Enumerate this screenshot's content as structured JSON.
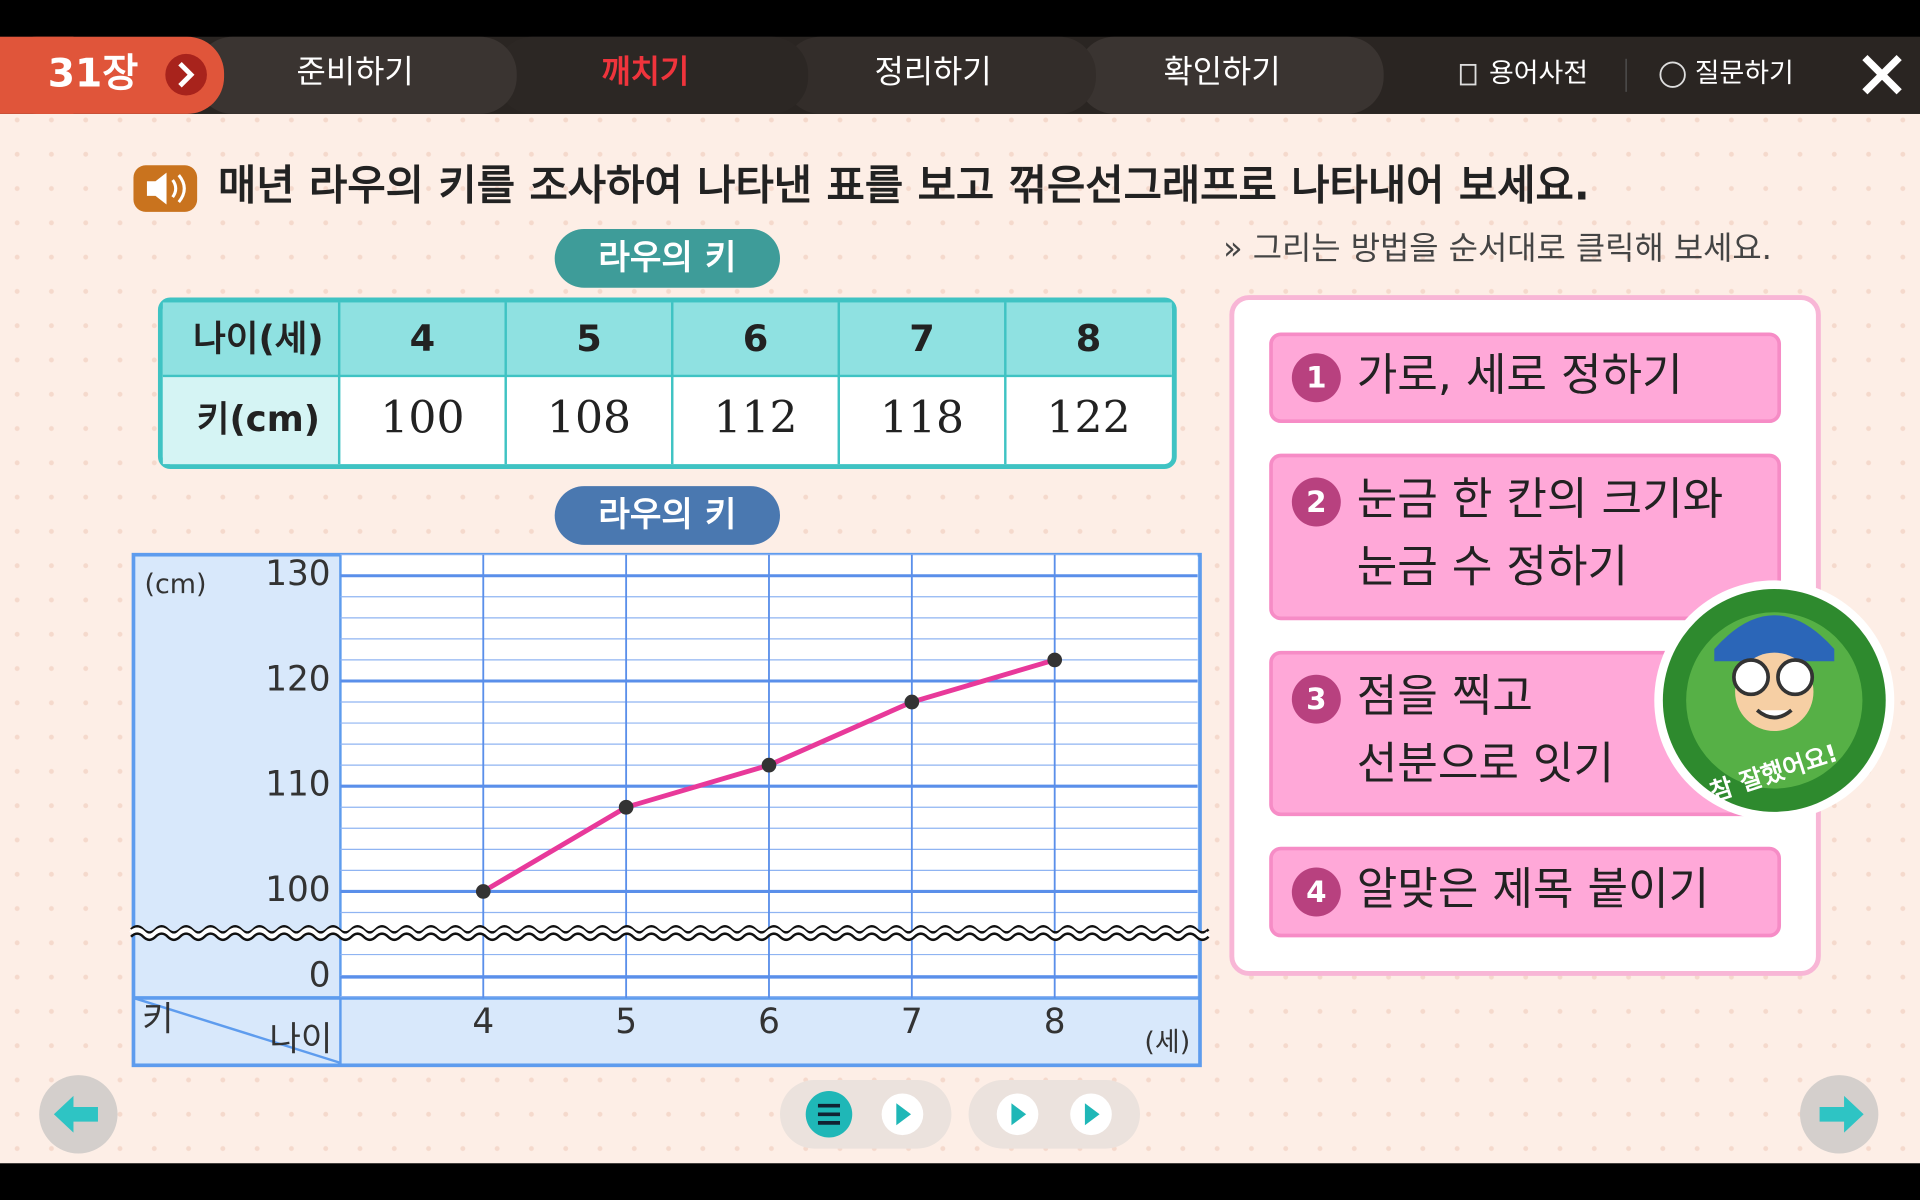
{
  "nav": {
    "chapter": "31장",
    "tabs": [
      "준비하기",
      "깨치기",
      "정리하기",
      "확인하기"
    ],
    "active_tab": 1,
    "tools": [
      "용어사전",
      "질문하기"
    ]
  },
  "instruction": "매년 라우의 키를 조사하여 나타낸 표를 보고 꺾은선그래프로 나타내어 보세요.",
  "hint": "» 그리는 방법을 순서대로 클릭해 보세요.",
  "table": {
    "title": "라우의 키",
    "row_labels": [
      "나이(세)",
      "키(cm)"
    ]
  },
  "chart_data": {
    "type": "line",
    "title": "라우의 키",
    "x": [
      4,
      5,
      6,
      7,
      8
    ],
    "values": [
      100,
      108,
      112,
      118,
      122
    ],
    "color": "#e8399a",
    "xlim": [
      3,
      9
    ],
    "xticks": [
      4,
      5,
      6,
      7,
      8
    ],
    "ylim": [
      100,
      132
    ],
    "yticks": [
      0,
      100,
      110,
      120,
      130
    ],
    "y_break": true,
    "y_label": "(cm)",
    "x_label": "(세)",
    "corner_labels": [
      "키",
      "나이"
    ],
    "grid": true
  },
  "steps": [
    {
      "number": 1,
      "lines": [
        "가로, 세로 정하기"
      ]
    },
    {
      "number": 2,
      "lines": [
        "눈금 한 칸의 크기와",
        "눈금 수 정하기"
      ]
    },
    {
      "number": 3,
      "lines": [
        "점을 찍고",
        "선분으로 잇기"
      ]
    },
    {
      "number": 4,
      "lines": [
        "알맞은 제목 붙이기"
      ]
    }
  ],
  "badge": "참 잘했어요!"
}
